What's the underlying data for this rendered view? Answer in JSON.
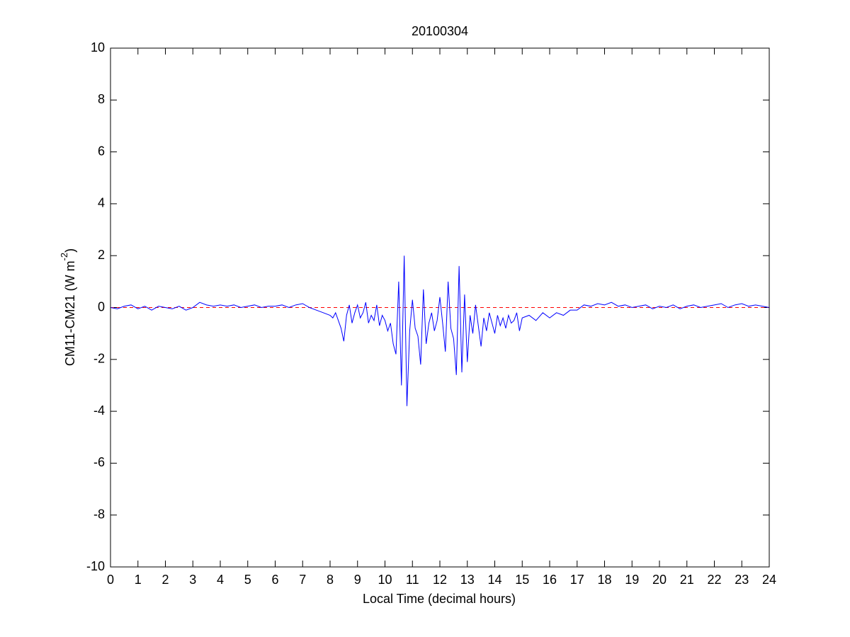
{
  "chart_data": {
    "type": "line",
    "title": "20100304",
    "xlabel": "Local Time (decimal hours)",
    "ylabel_parts": [
      "CM11-CM21 (W m",
      "-2",
      ")"
    ],
    "x": [
      0,
      0.25,
      0.5,
      0.75,
      1,
      1.25,
      1.5,
      1.75,
      2,
      2.25,
      2.5,
      2.75,
      3,
      3.25,
      3.5,
      3.75,
      4,
      4.25,
      4.5,
      4.75,
      5,
      5.25,
      5.5,
      5.75,
      6,
      6.25,
      6.5,
      6.75,
      7,
      7.25,
      7.5,
      7.75,
      8.0,
      8.1,
      8.2,
      8.3,
      8.4,
      8.5,
      8.6,
      8.7,
      8.8,
      8.9,
      9.0,
      9.1,
      9.2,
      9.3,
      9.4,
      9.5,
      9.6,
      9.7,
      9.8,
      9.9,
      10.0,
      10.1,
      10.2,
      10.3,
      10.4,
      10.5,
      10.6,
      10.7,
      10.8,
      10.9,
      11.0,
      11.1,
      11.2,
      11.3,
      11.4,
      11.5,
      11.6,
      11.7,
      11.8,
      11.9,
      12.0,
      12.1,
      12.2,
      12.3,
      12.4,
      12.5,
      12.6,
      12.7,
      12.8,
      12.9,
      13.0,
      13.1,
      13.2,
      13.3,
      13.4,
      13.5,
      13.6,
      13.7,
      13.8,
      13.9,
      14.0,
      14.1,
      14.2,
      14.3,
      14.4,
      14.5,
      14.6,
      14.7,
      14.8,
      14.9,
      15,
      15.25,
      15.5,
      15.75,
      16,
      16.25,
      16.5,
      16.75,
      17,
      17.25,
      17.5,
      17.75,
      18,
      18.25,
      18.5,
      18.75,
      19,
      19.25,
      19.5,
      19.75,
      20,
      20.25,
      20.5,
      20.75,
      21,
      21.25,
      21.5,
      21.75,
      22,
      22.25,
      22.5,
      22.75,
      23,
      23.25,
      23.5,
      23.75,
      24
    ],
    "series": [
      {
        "color": "#0000ff",
        "values": [
          0,
          -0.05,
          0.05,
          0.1,
          -0.05,
          0.05,
          -0.1,
          0.05,
          0,
          -0.05,
          0.05,
          -0.1,
          0,
          0.2,
          0.1,
          0.05,
          0.1,
          0.05,
          0.1,
          0,
          0.05,
          0.1,
          0,
          0.05,
          0.05,
          0.1,
          0,
          0.1,
          0.15,
          0,
          -0.1,
          -0.2,
          -0.3,
          -0.4,
          -0.2,
          -0.5,
          -0.8,
          -1.3,
          -0.3,
          0.1,
          -0.6,
          -0.2,
          0.1,
          -0.4,
          -0.2,
          0.2,
          -0.6,
          -0.3,
          -0.5,
          0.1,
          -0.7,
          -0.3,
          -0.5,
          -0.9,
          -0.6,
          -1.4,
          -1.8,
          1.0,
          -3.0,
          2.0,
          -3.8,
          -0.9,
          0.3,
          -0.8,
          -1.1,
          -2.2,
          0.7,
          -1.4,
          -0.6,
          -0.2,
          -0.9,
          -0.5,
          0.4,
          -0.6,
          -1.7,
          1.0,
          -0.8,
          -1.2,
          -2.6,
          1.6,
          -2.5,
          0.5,
          -2.1,
          -0.3,
          -1.0,
          0.1,
          -0.7,
          -1.5,
          -0.4,
          -0.9,
          -0.2,
          -0.6,
          -1.0,
          -0.3,
          -0.7,
          -0.4,
          -0.8,
          -0.3,
          -0.6,
          -0.5,
          -0.2,
          -0.9,
          -0.4,
          -0.3,
          -0.5,
          -0.2,
          -0.4,
          -0.2,
          -0.3,
          -0.1,
          -0.1,
          0.1,
          0.05,
          0.15,
          0.1,
          0.2,
          0.05,
          0.1,
          0,
          0.05,
          0.1,
          -0.05,
          0.05,
          0,
          0.1,
          -0.05,
          0.05,
          0.1,
          0,
          0.05,
          0.1,
          0.15,
          0,
          0.1,
          0.15,
          0.05,
          0.1,
          0.05,
          0
        ]
      }
    ],
    "reference_line": {
      "value": 0,
      "color": "#ff0000",
      "dashed": true
    },
    "xlim": [
      0,
      24
    ],
    "xticks": [
      0,
      1,
      2,
      3,
      4,
      5,
      6,
      7,
      8,
      9,
      10,
      11,
      12,
      13,
      14,
      15,
      16,
      17,
      18,
      19,
      20,
      21,
      22,
      23,
      24
    ],
    "ylim": [
      -10,
      10
    ],
    "yticks": [
      -10,
      -8,
      -6,
      -4,
      -2,
      0,
      2,
      4,
      6,
      8,
      10
    ],
    "grid": false
  }
}
